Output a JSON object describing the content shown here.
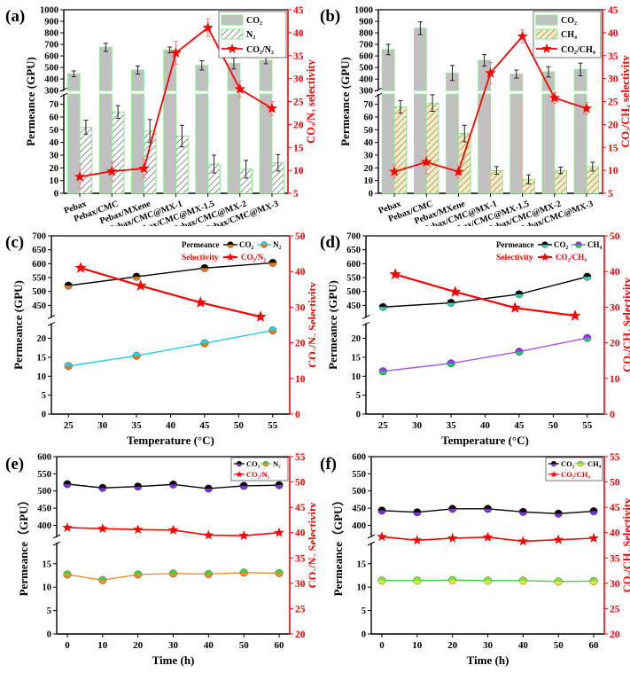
{
  "chart_data": [
    {
      "id": "a",
      "panel_label": "(a)",
      "type": "bar",
      "categories": [
        "Pebax",
        "Pebax/CMC",
        "Pebax/MXene",
        "Pebax/CMC@MX-1",
        "Pebax/CMC@MX-1.5",
        "Pebax/CMC@MX-2",
        "Pebax/CMC@MX-3"
      ],
      "ylabel": "Permeance (GPU)",
      "y2label": "CO₂/N₂ selectivity",
      "y_lower": {
        "range": [
          0,
          78
        ],
        "ticks": [
          0,
          10,
          20,
          30,
          40,
          50,
          60,
          70
        ]
      },
      "y_upper": {
        "range": [
          300,
          1000
        ],
        "ticks": [
          300,
          400,
          500,
          600,
          700,
          800,
          900,
          1000
        ]
      },
      "y2": {
        "range": [
          5,
          45
        ],
        "ticks": [
          5,
          10,
          15,
          20,
          25,
          30,
          35,
          40,
          45
        ]
      },
      "legend": {
        "placement": "top-right",
        "entries": [
          "CO₂",
          "N₂",
          "CO₂/N₂"
        ]
      },
      "series": [
        {
          "name": "CO₂",
          "kind": "bar",
          "style": "solid-gray",
          "values": [
            445,
            675,
            478,
            652,
            518,
            535,
            562
          ],
          "errors": [
            25,
            35,
            35,
            25,
            40,
            48,
            30
          ]
        },
        {
          "name": "N₂",
          "kind": "bar",
          "style": "hatch-gray",
          "values": [
            52,
            64,
            49,
            45,
            23,
            19,
            24
          ],
          "errors": [
            5.5,
            5,
            9,
            8.5,
            7,
            7,
            6.5
          ]
        },
        {
          "name": "CO₂/N₂",
          "kind": "line",
          "axis": "y2",
          "values": [
            8.6,
            9.8,
            10.4,
            35.6,
            41.1,
            27.7,
            23.5
          ],
          "errors": [
            2.6,
            2.1,
            2.0,
            2.5,
            1.9,
            1.7,
            1.5
          ]
        }
      ]
    },
    {
      "id": "b",
      "panel_label": "(b)",
      "type": "bar",
      "categories": [
        "Pebax",
        "Pebax/CMC",
        "Pebax/MXene",
        "Pebax/CMC@MX-1",
        "Pebax/CMC@MX-1.5",
        "Pebax/CMC@MX-2",
        "Pebax/CMC@MX-3"
      ],
      "ylabel": "Permeance (GPU)",
      "y2label": "CO₂/CH₄ selectivity",
      "y_lower": {
        "range": [
          0,
          78
        ],
        "ticks": [
          0,
          10,
          20,
          30,
          40,
          50,
          60,
          70
        ]
      },
      "y_upper": {
        "range": [
          300,
          1000
        ],
        "ticks": [
          300,
          400,
          500,
          600,
          700,
          800,
          900,
          1000
        ]
      },
      "y2": {
        "range": [
          5,
          45
        ],
        "ticks": [
          5,
          10,
          15,
          20,
          25,
          30,
          35,
          40,
          45
        ]
      },
      "legend": {
        "placement": "top-right",
        "entries": [
          "CO₂",
          "CH₄",
          "CO₂/CH₄"
        ]
      },
      "series": [
        {
          "name": "CO₂",
          "kind": "bar",
          "style": "solid-gray",
          "values": [
            655,
            840,
            452,
            562,
            443,
            462,
            483
          ],
          "errors": [
            45,
            55,
            65,
            50,
            35,
            45,
            55
          ]
        },
        {
          "name": "CH₄",
          "kind": "bar",
          "style": "hatch-khaki",
          "values": [
            68,
            71,
            47,
            18,
            11,
            18,
            21
          ],
          "errors": [
            5,
            6.5,
            6.5,
            3,
            3.5,
            2.5,
            3.5
          ]
        },
        {
          "name": "CO₂/CH₄",
          "kind": "line",
          "axis": "y2",
          "values": [
            9.7,
            11.8,
            9.7,
            31.2,
            39.2,
            25.8,
            23.5
          ],
          "errors": [
            1.4,
            2.5,
            1.4,
            2.3,
            1.4,
            1.2,
            1.3
          ]
        }
      ]
    },
    {
      "id": "c",
      "panel_label": "(c)",
      "type": "line",
      "xlabel": "Temperature (°C)",
      "ylabel": "Permeance (GPU)",
      "y2label": "CO₂/N₂ Selectivity",
      "x": [
        25,
        35,
        45,
        55
      ],
      "xlim": [
        22.5,
        57.5
      ],
      "xticks": [
        25,
        30,
        35,
        40,
        45,
        50,
        55
      ],
      "y_lower": {
        "range": [
          0,
          24
        ],
        "ticks": [
          0,
          5,
          10,
          15,
          20
        ]
      },
      "y_upper": {
        "range": [
          405,
          700
        ],
        "ticks": [
          450,
          500,
          550,
          600,
          650,
          700
        ]
      },
      "y2": {
        "range": [
          0,
          50
        ],
        "ticks": [
          0,
          10,
          20,
          30,
          40,
          50
        ]
      },
      "legend": {
        "placement": "top-right",
        "row1_title": "Permeance",
        "row2_title": "Selectivity",
        "entries": [
          "CO₂",
          "N₂",
          "CO₂/N₂"
        ]
      },
      "series": [
        {
          "name": "CO₂",
          "segment": "upper",
          "color": "#000000",
          "marker_top": "#000000",
          "marker_bottom": "#e07b1c",
          "values": [
            521,
            553,
            584,
            603
          ]
        },
        {
          "name": "N₂",
          "segment": "lower",
          "color": "#22d3e6",
          "marker_top": "#22d3e6",
          "marker_bottom": "#e07b1c",
          "values": [
            12.7,
            15.4,
            18.7,
            22.1
          ]
        },
        {
          "name": "CO₂/N₂",
          "axis": "y2",
          "color": "#ff0000",
          "marker": "star",
          "x": [
            26.8,
            35.6,
            44.4,
            53.2
          ],
          "values": [
            41.0,
            36.0,
            31.3,
            27.3
          ]
        }
      ]
    },
    {
      "id": "d",
      "panel_label": "(d)",
      "type": "line",
      "xlabel": "Temperature (°C)",
      "ylabel": "Permeance (GPU)",
      "y2label": "CO₂/CH₄ Selectivity",
      "x": [
        25,
        35,
        45,
        55
      ],
      "xlim": [
        22.5,
        57.5
      ],
      "xticks": [
        25,
        30,
        35,
        40,
        45,
        50,
        55
      ],
      "y_lower": {
        "range": [
          0,
          24
        ],
        "ticks": [
          0,
          5,
          10,
          15,
          20
        ]
      },
      "y_upper": {
        "range": [
          405,
          700
        ],
        "ticks": [
          450,
          500,
          550,
          600,
          650,
          700
        ]
      },
      "y2": {
        "range": [
          0,
          50
        ],
        "ticks": [
          0,
          10,
          20,
          30,
          40,
          50
        ]
      },
      "legend": {
        "placement": "top-right",
        "row1_title": "Permeance",
        "row2_title": "Selectivity",
        "entries": [
          "CO₂",
          "CH₄",
          "CO₂/CH₄"
        ]
      },
      "series": [
        {
          "name": "CO₂",
          "segment": "upper",
          "color": "#000000",
          "marker_top": "#000000",
          "marker_bottom": "#3ec9b8",
          "values": [
            444,
            459,
            490,
            553
          ]
        },
        {
          "name": "CH₄",
          "segment": "lower",
          "color": "#a855f7",
          "marker_top": "#9b30ff",
          "marker_bottom": "#22c55e",
          "values": [
            11.3,
            13.4,
            16.5,
            20.1
          ]
        },
        {
          "name": "CO₂/CH₄",
          "axis": "y2",
          "color": "#ff0000",
          "marker": "star",
          "x": [
            26.8,
            35.6,
            44.4,
            53.2
          ],
          "values": [
            39.2,
            34.3,
            29.8,
            27.6
          ]
        }
      ]
    },
    {
      "id": "e",
      "panel_label": "(e)",
      "type": "line",
      "xlabel": "Time (h)",
      "ylabel": "Permeance（GPU）",
      "y2label": "CO₂/N₂ Selectivity",
      "x": [
        0,
        10,
        20,
        30,
        40,
        50,
        60
      ],
      "xlim": [
        -3,
        63
      ],
      "xticks": [
        0,
        10,
        20,
        30,
        40,
        50,
        60
      ],
      "y_lower": {
        "range": [
          0,
          19.5
        ],
        "ticks": [
          0,
          5,
          10,
          15
        ]
      },
      "y_upper": {
        "range": [
          365,
          600
        ],
        "ticks": [
          400,
          450,
          500,
          550,
          600
        ]
      },
      "y2": {
        "range": [
          20,
          55
        ],
        "ticks": [
          20,
          25,
          30,
          35,
          40,
          45,
          50,
          55
        ]
      },
      "legend": {
        "placement": "top-right",
        "entries": [
          "CO₂",
          "N₂",
          "CO₂/N₂"
        ]
      },
      "series": [
        {
          "name": "CO₂",
          "segment": "upper",
          "color": "#000000",
          "marker_top": "#000000",
          "marker_bottom": "#7b2fd6",
          "values": [
            520,
            509,
            513,
            519,
            507,
            515,
            517
          ]
        },
        {
          "name": "N₂",
          "segment": "lower",
          "color": "#f08c2a",
          "marker_top": "#3cd43c",
          "marker_bottom": "#f08c2a",
          "values": [
            12.7,
            11.5,
            12.7,
            12.9,
            12.8,
            13.1,
            13.0
          ]
        },
        {
          "name": "CO₂/N₂",
          "axis": "y2",
          "color": "#ff0000",
          "marker": "star",
          "values": [
            41.0,
            40.8,
            40.6,
            40.5,
            39.5,
            39.4,
            40.0
          ]
        }
      ]
    },
    {
      "id": "f",
      "panel_label": "(f)",
      "type": "line",
      "xlabel": "Time (h)",
      "ylabel": "Permeance（GPU）",
      "y2label": "CO₂/CH₄ Selectivity",
      "x": [
        0,
        10,
        20,
        30,
        40,
        50,
        60
      ],
      "xlim": [
        -3,
        63
      ],
      "xticks": [
        0,
        10,
        20,
        30,
        40,
        50,
        60
      ],
      "y_lower": {
        "range": [
          0,
          19.5
        ],
        "ticks": [
          0,
          5,
          10,
          15
        ]
      },
      "y_upper": {
        "range": [
          365,
          600
        ],
        "ticks": [
          400,
          450,
          500,
          550,
          600
        ]
      },
      "y2": {
        "range": [
          20,
          55
        ],
        "ticks": [
          20,
          25,
          30,
          35,
          40,
          45,
          50,
          55
        ]
      },
      "legend": {
        "placement": "top-right",
        "entries": [
          "CO₂",
          "CH₄",
          "CO₂/CH₄"
        ]
      },
      "series": [
        {
          "name": "CO₂",
          "segment": "upper",
          "color": "#000000",
          "marker_top": "#000000",
          "marker_bottom": "#7b2fd6",
          "values": [
            443,
            438,
            448,
            448,
            439,
            434,
            441
          ]
        },
        {
          "name": "CH₄",
          "segment": "lower",
          "color": "#3cd43c",
          "marker_top": "#7ee03a",
          "marker_bottom": "#e8e830",
          "values": [
            11.4,
            11.4,
            11.5,
            11.4,
            11.4,
            11.2,
            11.3
          ]
        },
        {
          "name": "CO₂/CH₄",
          "axis": "y2",
          "color": "#ff0000",
          "marker": "star",
          "values": [
            39.2,
            38.5,
            38.9,
            39.1,
            38.3,
            38.6,
            38.9
          ]
        }
      ]
    }
  ]
}
